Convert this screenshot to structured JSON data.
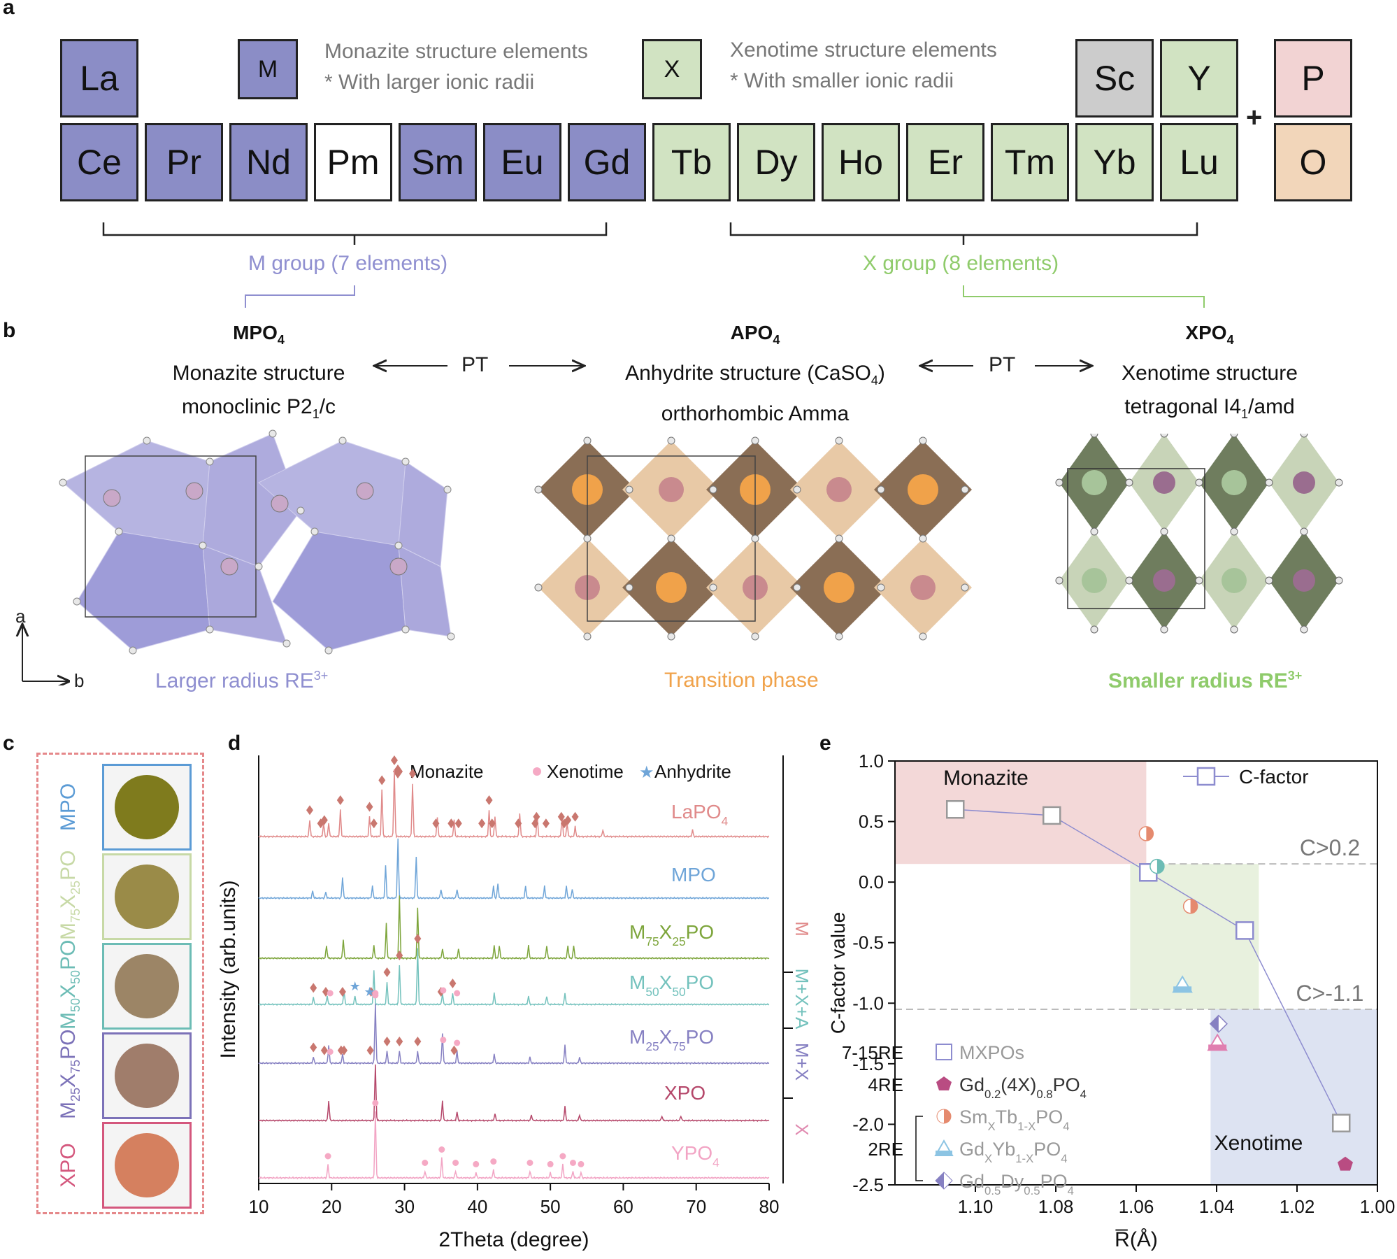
{
  "panel_a": {
    "label": "a",
    "legend_m": {
      "symbol": "M",
      "line1": "Monazite structure elements",
      "line2": "* With larger ionic radii"
    },
    "legend_x": {
      "symbol": "X",
      "line1": "Xenotime structure elements",
      "line2": "* With smaller ionic radii"
    },
    "elements": [
      {
        "sym": "La",
        "cls": "m"
      },
      {
        "sym": "Ce",
        "cls": "m"
      },
      {
        "sym": "Pr",
        "cls": "m"
      },
      {
        "sym": "Nd",
        "cls": "m"
      },
      {
        "sym": "Pm",
        "cls": "w"
      },
      {
        "sym": "Sm",
        "cls": "m"
      },
      {
        "sym": "Eu",
        "cls": "m"
      },
      {
        "sym": "Gd",
        "cls": "m"
      },
      {
        "sym": "Tb",
        "cls": "x"
      },
      {
        "sym": "Dy",
        "cls": "x"
      },
      {
        "sym": "Ho",
        "cls": "x"
      },
      {
        "sym": "Er",
        "cls": "x"
      },
      {
        "sym": "Tm",
        "cls": "x"
      },
      {
        "sym": "Yb",
        "cls": "x"
      },
      {
        "sym": "Lu",
        "cls": "x"
      },
      {
        "sym": "Sc",
        "cls": "g"
      },
      {
        "sym": "Y",
        "cls": "x"
      },
      {
        "sym": "P",
        "cls": "p"
      },
      {
        "sym": "O",
        "cls": "o"
      }
    ],
    "plus": "+",
    "m_group": "M group (7 elements)",
    "x_group": "X group (8 elements)",
    "colors": {
      "m": "#8b8dc6",
      "x": "#d1e3c2",
      "m_text": "#8f8fd0",
      "x_text": "#8fcb6b"
    }
  },
  "panel_b": {
    "label": "b",
    "mpo": {
      "formula": "MPO",
      "sub": "4",
      "line1": "Monazite structure",
      "line2_pre": "monoclinic P2",
      "line2_sub": "1",
      "line2_post": "/c"
    },
    "apo": {
      "formula": "APO",
      "sub": "4",
      "line1_pre": "Anhydrite structure (CaSO",
      "line1_sub": "4",
      "line1_post": ")",
      "line2": "orthorhombic Amma"
    },
    "xpo": {
      "formula": "XPO",
      "sub": "4",
      "line1": "Xenotime structure",
      "line2_pre": "tetragonal I4",
      "line2_sub": "1",
      "line2_post": "/amd"
    },
    "pt": "PT",
    "axis_a": "a",
    "axis_b": "b",
    "cap_left": "Larger radius RE",
    "cap_left_sup": "3+",
    "cap_mid": "Transition phase",
    "cap_right": "Smaller radius RE",
    "cap_right_sup": "3+"
  },
  "panel_c": {
    "label": "c",
    "samples": [
      {
        "name": "MPO",
        "pre": "MPO",
        "s1": "",
        "mid": "",
        "s2": "",
        "post": "",
        "color": "#5b9bd5",
        "disk": "#7f7b1d"
      },
      {
        "name": "M75X25PO",
        "pre": "M",
        "s1": "75",
        "mid": "X",
        "s2": "25",
        "post": "PO",
        "color": "#c7d9a6",
        "disk": "#9a8b48"
      },
      {
        "name": "M50X50PO",
        "pre": "M",
        "s1": "50",
        "mid": "X",
        "s2": "50",
        "post": "PO",
        "color": "#6cbcb5",
        "disk": "#9c8566"
      },
      {
        "name": "M25X75PO",
        "pre": "M",
        "s1": "25",
        "mid": "X",
        "s2": "75",
        "post": "PO",
        "color": "#7c72b8",
        "disk": "#a07d6b"
      },
      {
        "name": "XPO",
        "pre": "XPO",
        "s1": "",
        "mid": "",
        "s2": "",
        "post": "",
        "color": "#d4577d",
        "disk": "#d5805f"
      }
    ]
  },
  "panel_d": {
    "label": "d",
    "ylabel": "Intensity (arb.units)",
    "xlabel": "2Theta (degree)",
    "legend": [
      "Monazite",
      "Xenotime",
      "Anhydrite"
    ],
    "right_labels": [
      "M",
      "M+X+A",
      "M+X",
      "X"
    ],
    "chart_data": {
      "type": "line",
      "xlim": [
        10,
        80
      ],
      "xticks": [
        10,
        20,
        30,
        40,
        50,
        60,
        70,
        80
      ],
      "series": [
        {
          "name": "LaPO4",
          "label_pre": "LaPO",
          "label_sub": "4",
          "label_post": "",
          "color": "#e08a8a",
          "peaks": [
            [
              17.0,
              0.25
            ],
            [
              18.9,
              0.2
            ],
            [
              19.6,
              0.2
            ],
            [
              21.2,
              0.4
            ],
            [
              25.2,
              0.3
            ],
            [
              26.9,
              0.7
            ],
            [
              28.6,
              1.0
            ],
            [
              31.1,
              0.8
            ],
            [
              34.5,
              0.3
            ],
            [
              36.8,
              0.25
            ],
            [
              41.6,
              0.4
            ],
            [
              42.4,
              0.3
            ],
            [
              45.8,
              0.35
            ],
            [
              48.2,
              0.3
            ],
            [
              51.6,
              0.3
            ],
            [
              52.3,
              0.2
            ],
            [
              53.4,
              0.15
            ],
            [
              57.2,
              0.1
            ],
            [
              69.5,
              0.1
            ]
          ],
          "monazite_marks": [
            17.0,
            18.5,
            19.0,
            21.2,
            25.2,
            25.8,
            26.9,
            28.6,
            31.1,
            34.3,
            36.4,
            37.4,
            40.6,
            41.6,
            42.0,
            45.6,
            47.9,
            48.1,
            49.4,
            51.5,
            51.9,
            52.4,
            53.4
          ]
        },
        {
          "name": "MPO",
          "label_pre": "MPO",
          "label_sub": "",
          "label_post": "",
          "color": "#6fa5d8",
          "peaks": [
            [
              17.4,
              0.12
            ],
            [
              19.2,
              0.1
            ],
            [
              21.5,
              0.35
            ],
            [
              25.6,
              0.2
            ],
            [
              27.4,
              0.55
            ],
            [
              29.1,
              1.0
            ],
            [
              31.6,
              0.7
            ],
            [
              35.0,
              0.15
            ],
            [
              37.2,
              0.15
            ],
            [
              42.2,
              0.2
            ],
            [
              42.8,
              0.25
            ],
            [
              46.6,
              0.2
            ],
            [
              49.2,
              0.2
            ],
            [
              52.2,
              0.2
            ],
            [
              53.0,
              0.15
            ]
          ],
          "monazite_marks": []
        },
        {
          "name": "M75X25PO",
          "label_pre": "M",
          "label_s1": "75",
          "label_mid": "X",
          "label_s2": "25",
          "label_post": "PO",
          "color": "#7da53b",
          "peaks": [
            [
              19.3,
              0.2
            ],
            [
              21.6,
              0.3
            ],
            [
              25.8,
              0.2
            ],
            [
              27.5,
              0.55
            ],
            [
              29.3,
              1.0
            ],
            [
              31.8,
              0.8
            ],
            [
              35.2,
              0.15
            ],
            [
              37.4,
              0.15
            ],
            [
              42.3,
              0.2
            ],
            [
              43.0,
              0.2
            ],
            [
              47.0,
              0.2
            ],
            [
              49.5,
              0.2
            ],
            [
              52.4,
              0.2
            ],
            [
              53.2,
              0.2
            ]
          ],
          "monazite_marks": []
        },
        {
          "name": "M50X50PO",
          "label_pre": "M",
          "label_s1": "50",
          "label_mid": "X",
          "label_s2": "50",
          "label_post": "PO",
          "color": "#74c2bd",
          "peaks": [
            [
              17.5,
              0.12
            ],
            [
              19.4,
              0.15
            ],
            [
              21.7,
              0.25
            ],
            [
              23.2,
              0.15
            ],
            [
              25.8,
              0.6
            ],
            [
              27.6,
              0.4
            ],
            [
              29.3,
              0.7
            ],
            [
              31.8,
              1.0
            ],
            [
              35.2,
              0.2
            ],
            [
              36.6,
              0.2
            ],
            [
              42.3,
              0.2
            ],
            [
              47.0,
              0.15
            ],
            [
              49.5,
              0.15
            ],
            [
              52.0,
              0.2
            ]
          ],
          "monazite_marks": [
            17.5,
            19.2,
            21.5,
            25.4,
            27.6,
            29.3,
            31.8,
            35.0,
            36.6
          ],
          "xenotime_marks": [
            19.8,
            26.0,
            35.3,
            37.2
          ],
          "anhydrite_marks": [
            23.2,
            25.2
          ]
        },
        {
          "name": "M25X75PO",
          "label_pre": "M",
          "label_s1": "25",
          "label_mid": "X",
          "label_s2": "75",
          "label_post": "PO",
          "color": "#8680c2",
          "peaks": [
            [
              17.5,
              0.1
            ],
            [
              19.6,
              0.3
            ],
            [
              21.5,
              0.15
            ],
            [
              26.0,
              1.0
            ],
            [
              27.6,
              0.2
            ],
            [
              29.3,
              0.2
            ],
            [
              31.8,
              0.2
            ],
            [
              35.2,
              0.5
            ],
            [
              37.2,
              0.2
            ],
            [
              42.3,
              0.15
            ],
            [
              47.2,
              0.1
            ],
            [
              52.0,
              0.3
            ],
            [
              54.0,
              0.1
            ]
          ],
          "monazite_marks": [
            17.5,
            19.0,
            21.3,
            21.7,
            25.3,
            27.6,
            29.3,
            31.8,
            36.8
          ],
          "xenotime_marks": [
            19.8,
            26.0,
            35.3,
            37.2
          ]
        },
        {
          "name": "XPO",
          "label_pre": "XPO",
          "label_sub": "",
          "label_post": "",
          "color": "#b5476a",
          "peaks": [
            [
              19.6,
              0.35
            ],
            [
              26.0,
              1.0
            ],
            [
              35.2,
              0.35
            ],
            [
              37.2,
              0.15
            ],
            [
              42.4,
              0.12
            ],
            [
              47.4,
              0.1
            ],
            [
              52.0,
              0.25
            ],
            [
              54.0,
              0.1
            ],
            [
              65.3,
              0.08
            ],
            [
              67.9,
              0.08
            ]
          ],
          "monazite_marks": []
        },
        {
          "name": "YPO4",
          "label_pre": "YPO",
          "label_sub": "4",
          "label_post": "",
          "color": "#f2a4c4",
          "peaks": [
            [
              19.5,
              0.2
            ],
            [
              26.0,
              1.0
            ],
            [
              32.8,
              0.1
            ],
            [
              35.1,
              0.3
            ],
            [
              37.0,
              0.1
            ],
            [
              39.8,
              0.08
            ],
            [
              42.2,
              0.12
            ],
            [
              47.2,
              0.1
            ],
            [
              50.0,
              0.08
            ],
            [
              51.7,
              0.2
            ],
            [
              53.1,
              0.1
            ],
            [
              54.2,
              0.08
            ]
          ],
          "xenotime_marks": [
            19.5,
            26.0,
            32.8,
            35.1,
            37.0,
            39.8,
            42.2,
            47.2,
            50.0,
            51.7,
            53.1,
            54.2
          ]
        }
      ]
    }
  },
  "panel_e": {
    "label": "e",
    "ylabel": "C-factor value",
    "xlabel": "R̅(Å)",
    "region_monazite": "Monazite",
    "region_xenotime": "Xenotime",
    "legend_line": "C-factor",
    "thr1": "C>0.2",
    "thr2": "C>-1.1",
    "key": {
      "row1_group": "7-15RE",
      "row1_text": "MXPOs",
      "row2_group": "4RE",
      "row2_pre": "Gd",
      "row2_s1": "0.2",
      "row2_mid": "(4X)",
      "row2_s2": "0.8",
      "row2_post": "PO",
      "row2_s3": "4",
      "row3_pre": "Sm",
      "row3_s1": "X",
      "row3_mid": "Tb",
      "row3_s2": "1-X",
      "row3_post": "PO",
      "row3_s3": "4",
      "group2": "2RE",
      "row4_pre": "Gd",
      "row4_s1": "X",
      "row4_mid": "Yb",
      "row4_s2": "1-X",
      "row4_post": "PO",
      "row4_s3": "4",
      "row5_pre": "Gd",
      "row5_s1": "0.5",
      "row5_mid": "Dy",
      "row5_s2": "0.5",
      "row5_post": "PO",
      "row5_s3": "4"
    },
    "chart_data": {
      "type": "scatter",
      "xlim": [
        1.12,
        1.0
      ],
      "ylim": [
        -2.5,
        1.0
      ],
      "xticks": [
        1.1,
        1.08,
        1.06,
        1.04,
        1.02,
        1.0
      ],
      "xtick_labels": [
        "1.10",
        "1.08",
        "1.06",
        "1.04",
        "1.02",
        "1.00"
      ],
      "yticks": [
        1.0,
        0.5,
        0.0,
        -0.5,
        -1.0,
        -1.5,
        -2.0,
        -2.5
      ],
      "ytick_labels": [
        "1.0",
        "0.5",
        "0.0",
        "-0.5",
        "-1.0",
        "-1.5",
        "-2.0",
        "-2.5"
      ],
      "threshold_high": 0.15,
      "threshold_low": -1.05,
      "monazite_region": {
        "x": [
          1.12,
          1.0575
        ],
        "y": [
          0.15,
          1.0
        ]
      },
      "transition_region": {
        "x": [
          1.0615,
          1.0295
        ],
        "y": [
          -1.05,
          0.15
        ]
      },
      "xenotime_region": {
        "x": [
          1.0415,
          1.0
        ],
        "y": [
          -2.5,
          -1.05
        ]
      },
      "mxpos": [
        {
          "x": 1.105,
          "y": 0.6
        },
        {
          "x": 1.081,
          "y": 0.55
        },
        {
          "x": 1.057,
          "y": 0.08
        },
        {
          "x": 1.033,
          "y": -0.4
        },
        {
          "x": 1.009,
          "y": -1.99
        }
      ],
      "gd_4x": [
        {
          "x": 1.008,
          "y": -2.33
        }
      ],
      "smtb": [
        {
          "x": 1.0575,
          "y": 0.4
        },
        {
          "x": 1.0465,
          "y": -0.2
        }
      ],
      "gdyb": [
        {
          "x": 1.0485,
          "y": -0.85
        },
        {
          "x": 1.0398,
          "y": -1.33
        }
      ],
      "gddy": [
        {
          "x": 1.0548,
          "y": 0.13
        },
        {
          "x": 1.0395,
          "y": -1.17
        }
      ]
    }
  }
}
